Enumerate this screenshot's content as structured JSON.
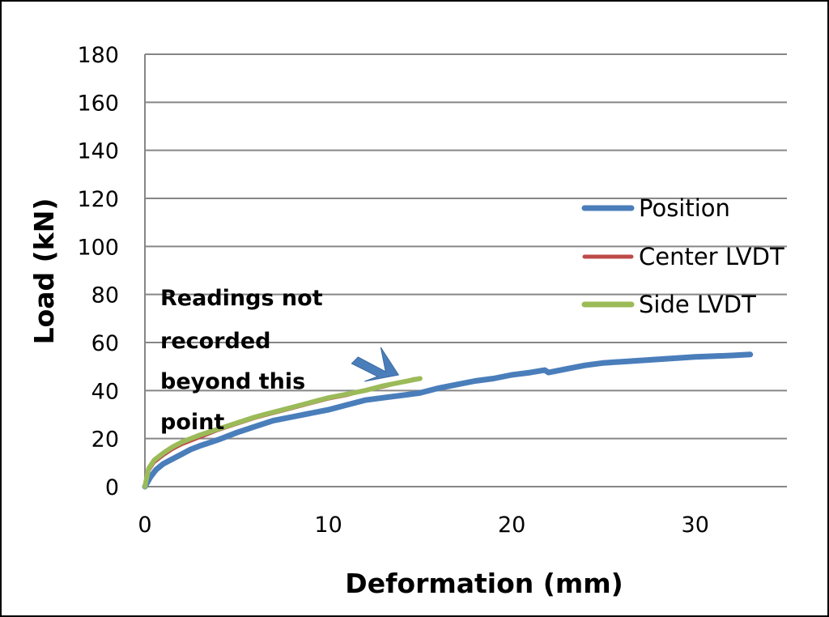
{
  "chart_data": {
    "type": "line",
    "xlabel": "Deformation (mm)",
    "ylabel": "Load (kN)",
    "xlim": [
      0,
      35
    ],
    "ylim": [
      0,
      180
    ],
    "x_ticks": [
      "0",
      "10",
      "20",
      "30"
    ],
    "y_ticks": [
      "0",
      "20",
      "40",
      "60",
      "80",
      "100",
      "120",
      "140",
      "160",
      "180"
    ],
    "grid": "horizontal",
    "legend_position": "right",
    "series": [
      {
        "name": "Position",
        "color": "#4A7EBB",
        "x": [
          0,
          0.3,
          0.6,
          1.0,
          1.5,
          2.0,
          2.5,
          3.0,
          4.0,
          5.0,
          6.0,
          7.0,
          8.0,
          9.0,
          10.0,
          11.0,
          12.0,
          13.0,
          14.0,
          15.0,
          16.0,
          17.0,
          18.0,
          19.0,
          20.0,
          21.0,
          21.8,
          22.0,
          23.0,
          24.0,
          25.0,
          26.0,
          27.0,
          28.0,
          29.0,
          30.0,
          31.0,
          32.0,
          33.0
        ],
        "y": [
          0,
          4,
          7,
          9.5,
          11.5,
          13.5,
          15.5,
          17,
          19.5,
          22.5,
          25,
          27.5,
          29,
          30.5,
          32,
          34,
          36,
          37,
          38,
          39,
          41,
          42.5,
          44,
          45,
          46.5,
          47.5,
          48.5,
          47.5,
          49,
          50.5,
          51.5,
          52,
          52.5,
          53,
          53.5,
          54,
          54.3,
          54.6,
          55
        ]
      },
      {
        "name": "Center LVDT",
        "color": "#BE4B48",
        "x": [
          0,
          0.2,
          0.5,
          1.0,
          1.5,
          2.0,
          3.0,
          4.0,
          5.0,
          6.0,
          7.0,
          8.0,
          9.0,
          10.0,
          11.0,
          12.0,
          13.0,
          14.0,
          14.7
        ],
        "y": [
          0,
          6.5,
          10,
          13,
          15.5,
          17.5,
          20.5,
          23.5,
          26,
          28.5,
          30.5,
          32.5,
          34.5,
          36.5,
          38,
          40,
          41.5,
          43.5,
          45
        ]
      },
      {
        "name": "Side LVDT",
        "color": "#9BBB59",
        "x": [
          0,
          0.2,
          0.5,
          1.0,
          1.5,
          2.0,
          3.0,
          4.0,
          5.0,
          6.0,
          7.0,
          8.0,
          9.0,
          10.0,
          11.0,
          12.0,
          13.0,
          14.0,
          15.0
        ],
        "y": [
          0,
          7.5,
          11,
          14,
          16.5,
          18.5,
          21.5,
          24,
          26.5,
          29,
          31,
          33,
          35,
          37,
          38.5,
          40,
          42,
          43.5,
          45
        ]
      }
    ],
    "annotation": {
      "lines": [
        "Readings not",
        "recorded",
        "beyond this",
        "point"
      ],
      "arrow_target": [
        14.8,
        44.5
      ]
    }
  }
}
